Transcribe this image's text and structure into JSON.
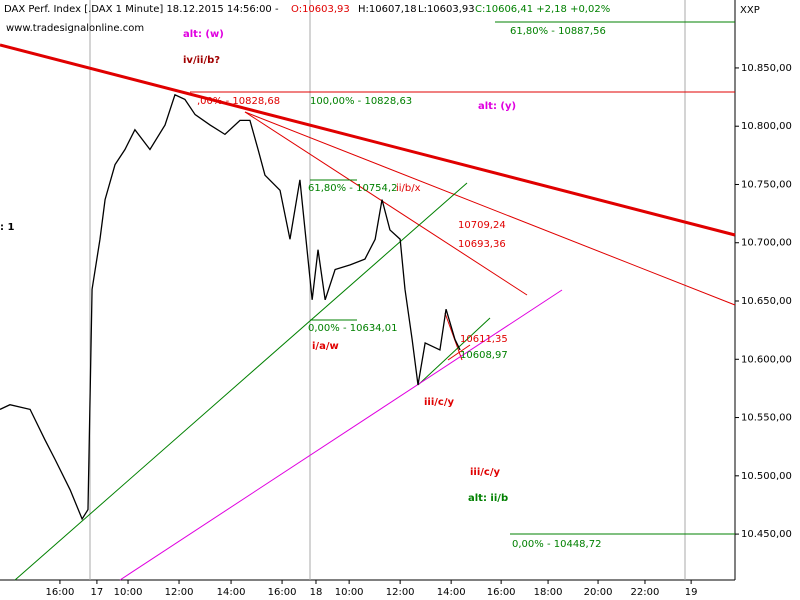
{
  "chart_data": {
    "type": "line",
    "title": "DAX Perf. Index [.DAX  1 Minute]  18.12.2015 14:56:00 -",
    "quote": {
      "open": "O:10603,93",
      "high": "H:10607,18",
      "low": "L:10603,93",
      "close": "C:10606,41 +2,18 +0,02%"
    },
    "source": "www.tradesignalonline.com",
    "symbol_tag": "XXP",
    "xlim": [
      0,
      28.82
    ],
    "xticks": [
      {
        "value": 2.35,
        "label": "16:00"
      },
      {
        "value": 3.8,
        "label": "17"
      },
      {
        "value": 5.02,
        "label": "10:00"
      },
      {
        "value": 7.02,
        "label": "12:00"
      },
      {
        "value": 9.06,
        "label": "14:00"
      },
      {
        "value": 11.06,
        "label": "16:00"
      },
      {
        "value": 12.39,
        "label": "18"
      },
      {
        "value": 13.69,
        "label": "10:00"
      },
      {
        "value": 15.69,
        "label": "12:00"
      },
      {
        "value": 17.69,
        "label": "14:00"
      },
      {
        "value": 19.65,
        "label": "16:00"
      },
      {
        "value": 21.49,
        "label": "18:00"
      },
      {
        "value": 23.45,
        "label": "20:00"
      },
      {
        "value": 25.29,
        "label": "22:00"
      },
      {
        "value": 27.1,
        "label": "19"
      }
    ],
    "ylim": [
      10410.6,
      10908.3
    ],
    "yticks": [
      {
        "value": 10450,
        "label": "10.450,00"
      },
      {
        "value": 10500,
        "label": "10.500,00"
      },
      {
        "value": 10550,
        "label": "10.550,00"
      },
      {
        "value": 10600,
        "label": "10.600,00"
      },
      {
        "value": 10650,
        "label": "10.650,00"
      },
      {
        "value": 10700,
        "label": "10.700,00"
      },
      {
        "value": 10750,
        "label": "10.750,00"
      },
      {
        "value": 10800,
        "label": "10.800,00"
      },
      {
        "value": 10850,
        "label": "10.850,00"
      }
    ],
    "series": [
      {
        "name": "DAX Perf. Index",
        "color": "#000000",
        "x": [
          0,
          0.39,
          1.18,
          1.76,
          2.16,
          2.75,
          3.22,
          3.45,
          3.61,
          3.92,
          4.12,
          4.51,
          4.9,
          5.29,
          5.88,
          6.47,
          6.86,
          7.25,
          7.65,
          8.24,
          8.82,
          9.41,
          9.8,
          10.12,
          10.39,
          10.98,
          11.37,
          11.76,
          12.24,
          12.47,
          12.75,
          13.14,
          13.73,
          14.31,
          14.71,
          14.98,
          15.29,
          15.69,
          15.88,
          16.16,
          16.39,
          16.67,
          17.25,
          17.49,
          17.84,
          18.04
        ],
        "values": [
          10557,
          10561,
          10557,
          10531,
          10514,
          10488,
          10463,
          10471,
          10660,
          10703,
          10737,
          10767,
          10780,
          10797,
          10780,
          10801,
          10827,
          10823,
          10810,
          10801,
          10793,
          10805,
          10805,
          10780,
          10758,
          10745,
          10703,
          10754,
          10651,
          10694,
          10651,
          10677,
          10681,
          10686,
          10703,
          10737,
          10711,
          10703,
          10660,
          10617,
          10578,
          10614,
          10608,
          10643,
          10617,
          10608
        ]
      }
    ],
    "annotations": [
      "alt: (w)",
      "iv/ii/b?",
      "alt: (y)",
      ": 1",
      "i/a/w",
      "iii/c/y",
      "iii/c/y",
      "alt: ii/b",
      "ii/b/x",
      "10709,24",
      "10693,36",
      "10611,35",
      "10608,97",
      "61,80% - 10887,56",
      "100,00% - 10828,63",
      ",00% - 10828,68",
      "61,80% - 10754,2",
      "0,00% - 10634,01",
      "0,00% - 10448,72"
    ]
  }
}
